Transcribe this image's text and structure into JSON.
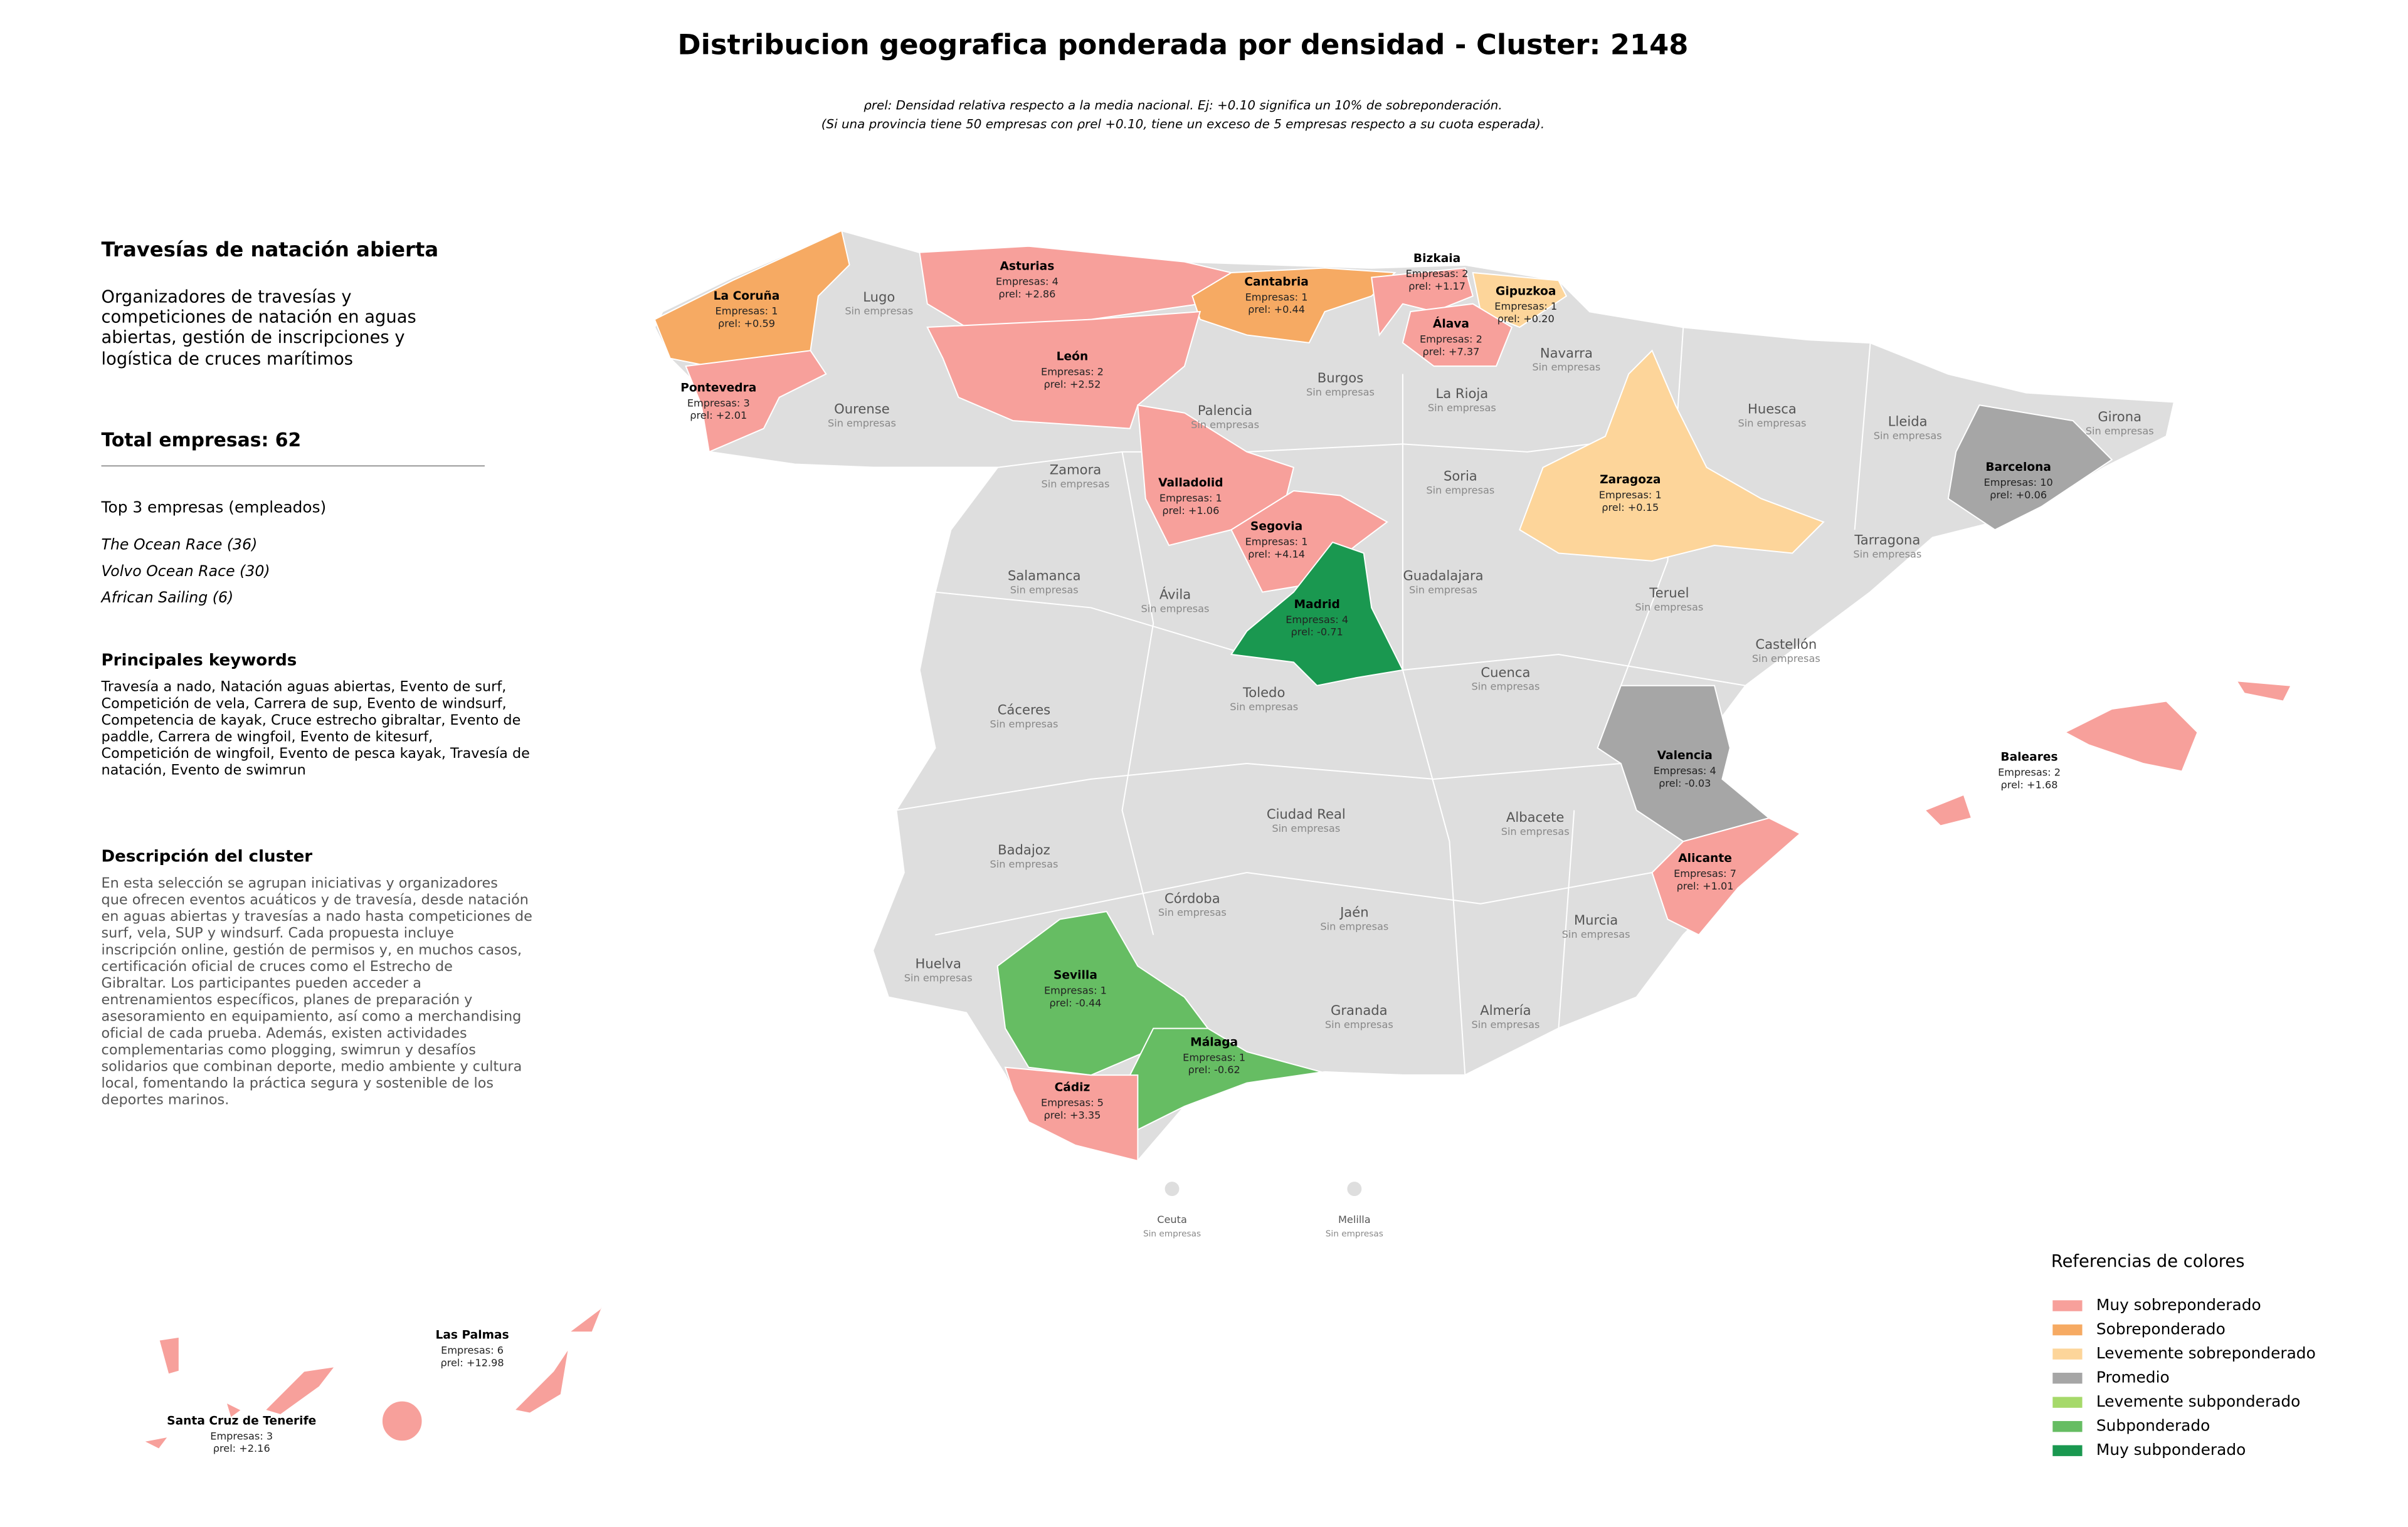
{
  "title": "Distribucion geografica ponderada por densidad - Cluster: 2148",
  "subtitle": [
    "ρrel: Densidad relativa respecto a la media nacional. Ej: +0.10 significa un 10% de sobreponderación.",
    "(Si una provincia tiene 50 empresas con ρrel +0.10, tiene un exceso de 5 empresas respecto a su cuota esperada)."
  ],
  "sidebar": {
    "heading": "Travesías de natación abierta",
    "intro": [
      "Organizadores de travesías y",
      "competiciones de natación en aguas",
      "abiertas, gestión de inscripciones y",
      "logística de cruces marítimos"
    ],
    "total": "Total empresas: 62",
    "top_title": "Top 3 empresas (empleados)",
    "top": [
      "The Ocean Race (36)",
      "Volvo Ocean Race (30)",
      "African Sailing (6)"
    ],
    "keywords_title": "Principales keywords",
    "keywords": [
      "Travesía a nado, Natación aguas abiertas, Evento de surf,",
      "Competición de vela, Carrera de sup, Evento de windsurf,",
      "Competencia de kayak, Cruce estrecho gibraltar, Evento de",
      "paddle, Carrera de wingfoil, Evento de kitesurf,",
      "Competición de wingfoil, Evento de pesca kayak, Travesía de",
      "natación, Evento de swimrun"
    ],
    "description_title": "Descripción del cluster",
    "description": [
      "En esta selección se agrupan iniciativas y organizadores",
      "que ofrecen eventos acuáticos y de travesía, desde natación",
      "en aguas abiertas y travesías a nado hasta competiciones de",
      "surf, vela, SUP y windsurf. Cada propuesta incluye",
      "inscripción online, gestión de permisos y, en muchos casos,",
      "certificación oficial de cruces como el Estrecho de",
      "Gibraltar. Los participantes pueden acceder a",
      "entrenamientos específicos, planes de preparación y",
      "asesoramiento en equipamiento, así como a merchandising",
      "oficial de cada prueba. Además, existen actividades",
      "complementarias como plogging, swimrun y desafíos",
      "solidarios que combinan deporte, medio ambiente y cultura",
      "local, fomentando la práctica segura y sostenible de los",
      "deportes marinos."
    ]
  },
  "map": {
    "no_data_color": "#dedede",
    "provinces": [
      {
        "name": "La Coruña",
        "companies": "Empresas: 1",
        "rho": "ρrel: +0.59",
        "category": "Sobreponderado"
      },
      {
        "name": "Pontevedra",
        "companies": "Empresas: 3",
        "rho": "ρrel: +2.01",
        "category": "Muy sobreponderado"
      },
      {
        "name": "Asturias",
        "companies": "Empresas: 4",
        "rho": "ρrel: +2.86",
        "category": "Muy sobreponderado"
      },
      {
        "name": "Cantabria",
        "companies": "Empresas: 1",
        "rho": "ρrel: +0.44",
        "category": "Sobreponderado"
      },
      {
        "name": "Bizkaia",
        "companies": "Empresas: 2",
        "rho": "ρrel: +1.17",
        "category": "Muy sobreponderado"
      },
      {
        "name": "Gipuzkoa",
        "companies": "Empresas: 1",
        "rho": "ρrel: +0.20",
        "category": "Levemente sobreponderado"
      },
      {
        "name": "Álava",
        "companies": "Empresas: 2",
        "rho": "ρrel: +7.37",
        "category": "Muy sobreponderado"
      },
      {
        "name": "León",
        "companies": "Empresas: 2",
        "rho": "ρrel: +2.52",
        "category": "Muy sobreponderado"
      },
      {
        "name": "Valladolid",
        "companies": "Empresas: 1",
        "rho": "ρrel: +1.06",
        "category": "Muy sobreponderado"
      },
      {
        "name": "Segovia",
        "companies": "Empresas: 1",
        "rho": "ρrel: +4.14",
        "category": "Muy sobreponderado"
      },
      {
        "name": "Zaragoza",
        "companies": "Empresas: 1",
        "rho": "ρrel: +0.15",
        "category": "Levemente sobreponderado"
      },
      {
        "name": "Barcelona",
        "companies": "Empresas: 10",
        "rho": "ρrel: +0.06",
        "category": "Promedio"
      },
      {
        "name": "Madrid",
        "companies": "Empresas: 4",
        "rho": "ρrel: -0.71",
        "category": "Muy subponderado"
      },
      {
        "name": "Valencia",
        "companies": "Empresas: 4",
        "rho": "ρrel: -0.03",
        "category": "Promedio"
      },
      {
        "name": "Alicante",
        "companies": "Empresas: 7",
        "rho": "ρrel: +1.01",
        "category": "Muy sobreponderado"
      },
      {
        "name": "Baleares",
        "companies": "Empresas: 2",
        "rho": "ρrel: +1.68",
        "category": "Muy sobreponderado"
      },
      {
        "name": "Sevilla",
        "companies": "Empresas: 1",
        "rho": "ρrel: -0.44",
        "category": "Subponderado"
      },
      {
        "name": "Málaga",
        "companies": "Empresas: 1",
        "rho": "ρrel: -0.62",
        "category": "Subponderado"
      },
      {
        "name": "Cádiz",
        "companies": "Empresas: 5",
        "rho": "ρrel: +3.35",
        "category": "Muy sobreponderado"
      },
      {
        "name": "Las Palmas",
        "companies": "Empresas: 6",
        "rho": "ρrel: +12.98",
        "category": "Muy sobreponderado"
      },
      {
        "name": "Santa Cruz de Tenerife",
        "companies": "Empresas: 3",
        "rho": "ρrel: +2.16",
        "category": "Muy sobreponderado"
      },
      {
        "name": "Lugo",
        "companies": "Sin empresas"
      },
      {
        "name": "Ourense",
        "companies": "Sin empresas"
      },
      {
        "name": "Burgos",
        "companies": "Sin empresas"
      },
      {
        "name": "Navarra",
        "companies": "Sin empresas"
      },
      {
        "name": "Palencia",
        "companies": "Sin empresas"
      },
      {
        "name": "La Rioja",
        "companies": "Sin empresas"
      },
      {
        "name": "Huesca",
        "companies": "Sin empresas"
      },
      {
        "name": "Lleida",
        "companies": "Sin empresas"
      },
      {
        "name": "Girona",
        "companies": "Sin empresas"
      },
      {
        "name": "Zamora",
        "companies": "Sin empresas"
      },
      {
        "name": "Soria",
        "companies": "Sin empresas"
      },
      {
        "name": "Tarragona",
        "companies": "Sin empresas"
      },
      {
        "name": "Salamanca",
        "companies": "Sin empresas"
      },
      {
        "name": "Ávila",
        "companies": "Sin empresas"
      },
      {
        "name": "Guadalajara",
        "companies": "Sin empresas"
      },
      {
        "name": "Teruel",
        "companies": "Sin empresas"
      },
      {
        "name": "Castellón",
        "companies": "Sin empresas"
      },
      {
        "name": "Cuenca",
        "companies": "Sin empresas"
      },
      {
        "name": "Toledo",
        "companies": "Sin empresas"
      },
      {
        "name": "Cáceres",
        "companies": "Sin empresas"
      },
      {
        "name": "Ciudad Real",
        "companies": "Sin empresas"
      },
      {
        "name": "Albacete",
        "companies": "Sin empresas"
      },
      {
        "name": "Badajoz",
        "companies": "Sin empresas"
      },
      {
        "name": "Córdoba",
        "companies": "Sin empresas"
      },
      {
        "name": "Jaén",
        "companies": "Sin empresas"
      },
      {
        "name": "Murcia",
        "companies": "Sin empresas"
      },
      {
        "name": "Huelva",
        "companies": "Sin empresas"
      },
      {
        "name": "Granada",
        "companies": "Sin empresas"
      },
      {
        "name": "Almería",
        "companies": "Sin empresas"
      },
      {
        "name": "Ceuta",
        "companies": "Sin empresas"
      },
      {
        "name": "Melilla",
        "companies": "Sin empresas"
      }
    ]
  },
  "legend": {
    "title": "Referencias de colores",
    "items": [
      {
        "name": "Muy sobreponderado",
        "color": "#f7a09b"
      },
      {
        "name": "Sobreponderado",
        "color": "#f6aa63"
      },
      {
        "name": "Levemente sobreponderado",
        "color": "#fdd59a"
      },
      {
        "name": "Promedio",
        "color": "#a6a6a6"
      },
      {
        "name": "Levemente subponderado",
        "color": "#a6d96a"
      },
      {
        "name": "Subponderado",
        "color": "#66bd63"
      },
      {
        "name": "Muy subponderado",
        "color": "#1a9850"
      }
    ]
  }
}
